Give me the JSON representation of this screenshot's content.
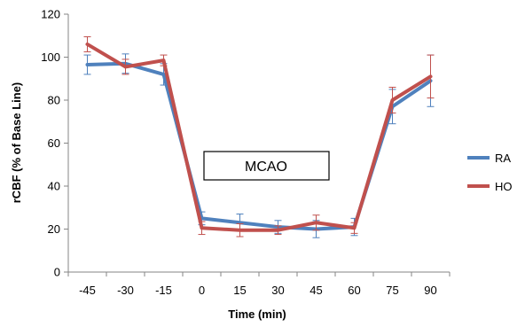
{
  "chart_data": {
    "type": "line",
    "title": "",
    "xlabel": "Time (min)",
    "ylabel": "rCBF (% of Base Line)",
    "ylim": [
      0,
      120
    ],
    "yticks": [
      "0",
      "20",
      "40",
      "60",
      "80",
      "100",
      "120"
    ],
    "categories": [
      "-45",
      "-30",
      "-15",
      "0",
      "15",
      "30",
      "45",
      "60",
      "75",
      "90"
    ],
    "grid": false,
    "legend_position": "right",
    "annotation": "MCAO",
    "series": [
      {
        "name": "RA",
        "color": "#4f81bd",
        "values": [
          96.5,
          97,
          92,
          25,
          23,
          21,
          20,
          21,
          77,
          89
        ],
        "errors": [
          4.5,
          4.5,
          5,
          3,
          4,
          3,
          4,
          4,
          8,
          12
        ]
      },
      {
        "name": "HO",
        "color": "#c0504d",
        "values": [
          106,
          95.5,
          98.5,
          20.5,
          19.5,
          19.5,
          23,
          20.5,
          80,
          91
        ],
        "errors": [
          3.5,
          3.5,
          2.5,
          3,
          3,
          2,
          3.5,
          2.5,
          6,
          10
        ]
      }
    ]
  }
}
